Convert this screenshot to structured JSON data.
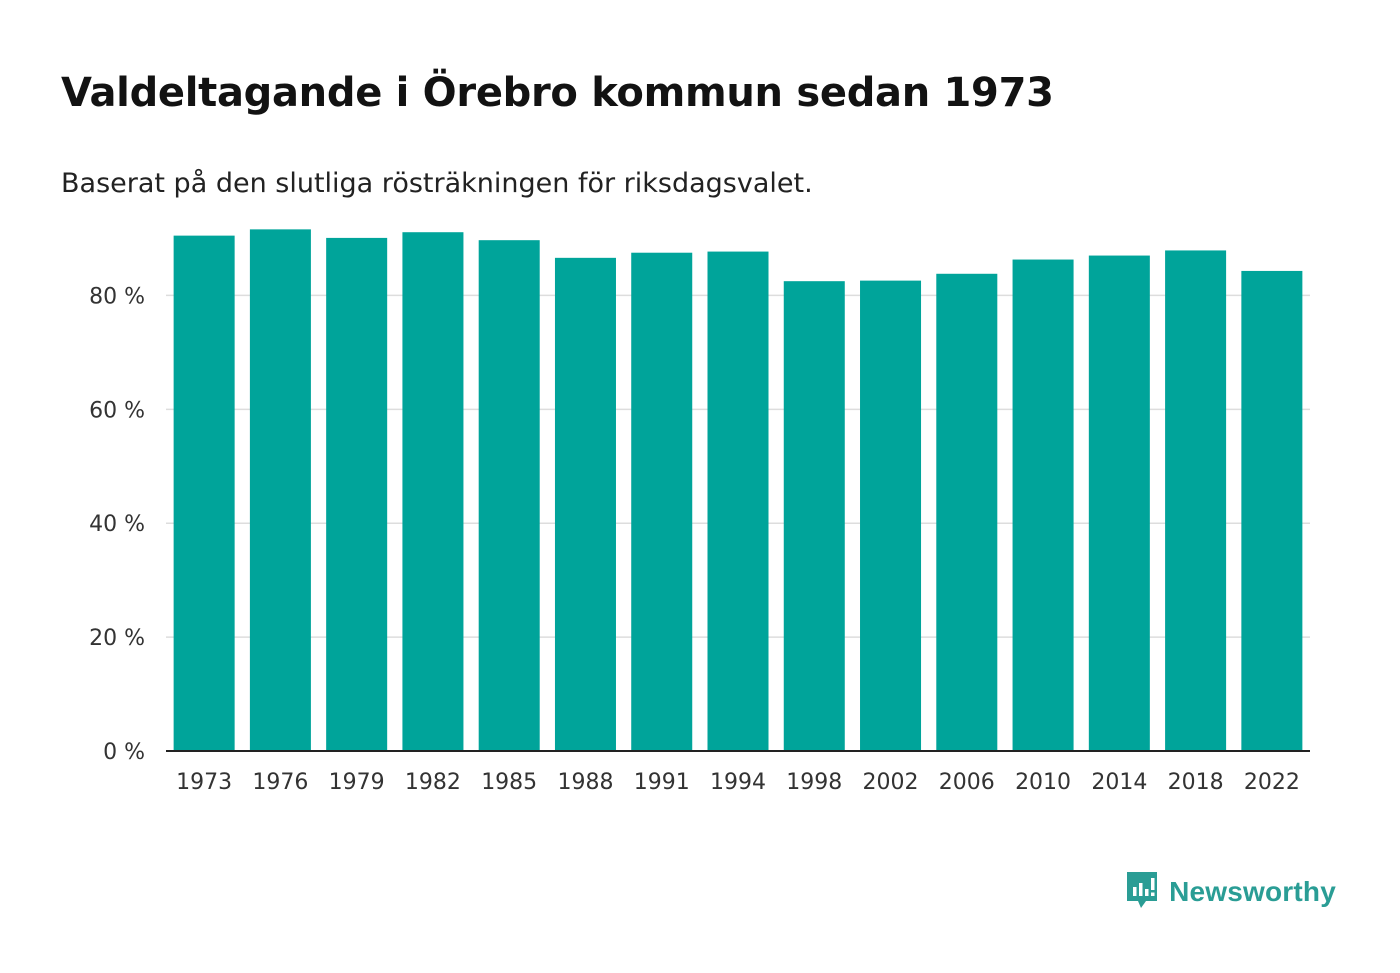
{
  "title": "Valdeltagande i Örebro kommun sedan 1973",
  "subtitle": "Baserat på den slutliga rösträkningen för riksdagsvalet.",
  "brand": {
    "name": "Newsworthy",
    "icon": "newsworthy-logo-icon",
    "color": "#2a9d95"
  },
  "chart_data": {
    "type": "bar",
    "title": "Valdeltagande i Örebro kommun sedan 1973",
    "subtitle": "Baserat på den slutliga rösträkningen för riksdagsvalet.",
    "xlabel": "",
    "ylabel": "",
    "categories": [
      "1973",
      "1976",
      "1979",
      "1982",
      "1985",
      "1988",
      "1991",
      "1994",
      "1998",
      "2002",
      "2006",
      "2010",
      "2014",
      "2018",
      "2022"
    ],
    "values": [
      90.5,
      91.6,
      90.1,
      91.1,
      89.7,
      86.6,
      87.5,
      87.7,
      82.5,
      82.6,
      83.8,
      86.3,
      87.0,
      87.9,
      84.3
    ],
    "ylim": [
      0,
      95
    ],
    "yticks": [
      0,
      20,
      40,
      60,
      80
    ],
    "ytick_labels": [
      "0 %",
      "20 %",
      "40 %",
      "60 %",
      "80 %"
    ],
    "grid": true,
    "bar_color": "#00a49a",
    "gridline_color": "#dddddd",
    "axis_color": "#222222"
  }
}
